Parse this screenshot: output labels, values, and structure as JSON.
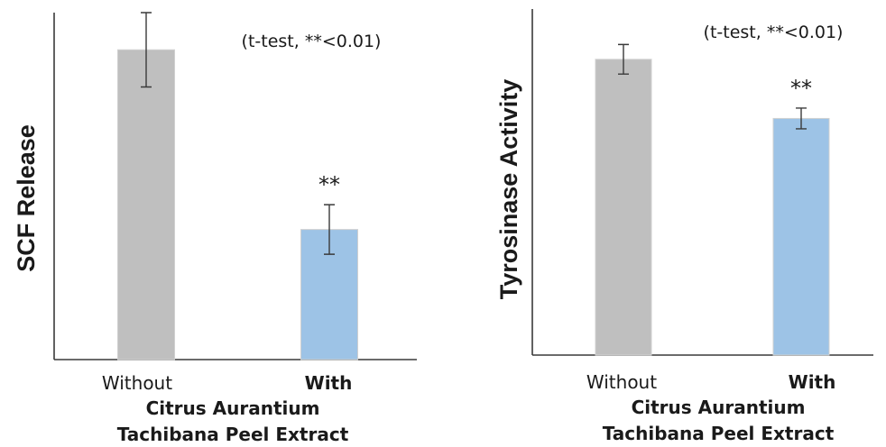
{
  "chart_data": [
    {
      "type": "bar",
      "categories": [
        "Without",
        "With"
      ],
      "values": [
        100,
        42
      ],
      "errors": [
        12,
        8
      ],
      "ylim": [
        0,
        112
      ],
      "ylabel": "SCF Release",
      "xlabel_line1": "Citrus Aurantium",
      "xlabel_line2": "Tachibana Peel Extract",
      "annotation": "(t-test, **<0.01)",
      "significance": [
        "",
        "**"
      ],
      "bold_categories": [
        false,
        true
      ],
      "colors": [
        "#bfbfbf",
        "#9dc3e6"
      ],
      "grid": false
    },
    {
      "type": "bar",
      "categories": [
        "Without",
        "With"
      ],
      "values": [
        100,
        80
      ],
      "errors": [
        5,
        3.5
      ],
      "ylim": [
        0,
        117
      ],
      "ylabel": "Tyrosinase Activity",
      "xlabel_line1": "Citrus Aurantium",
      "xlabel_line2": "Tachibana Peel Extract",
      "annotation": "(t-test, **<0.01)",
      "significance": [
        "",
        "**"
      ],
      "bold_categories": [
        false,
        true
      ],
      "colors": [
        "#bfbfbf",
        "#9dc3e6"
      ],
      "grid": false
    }
  ]
}
